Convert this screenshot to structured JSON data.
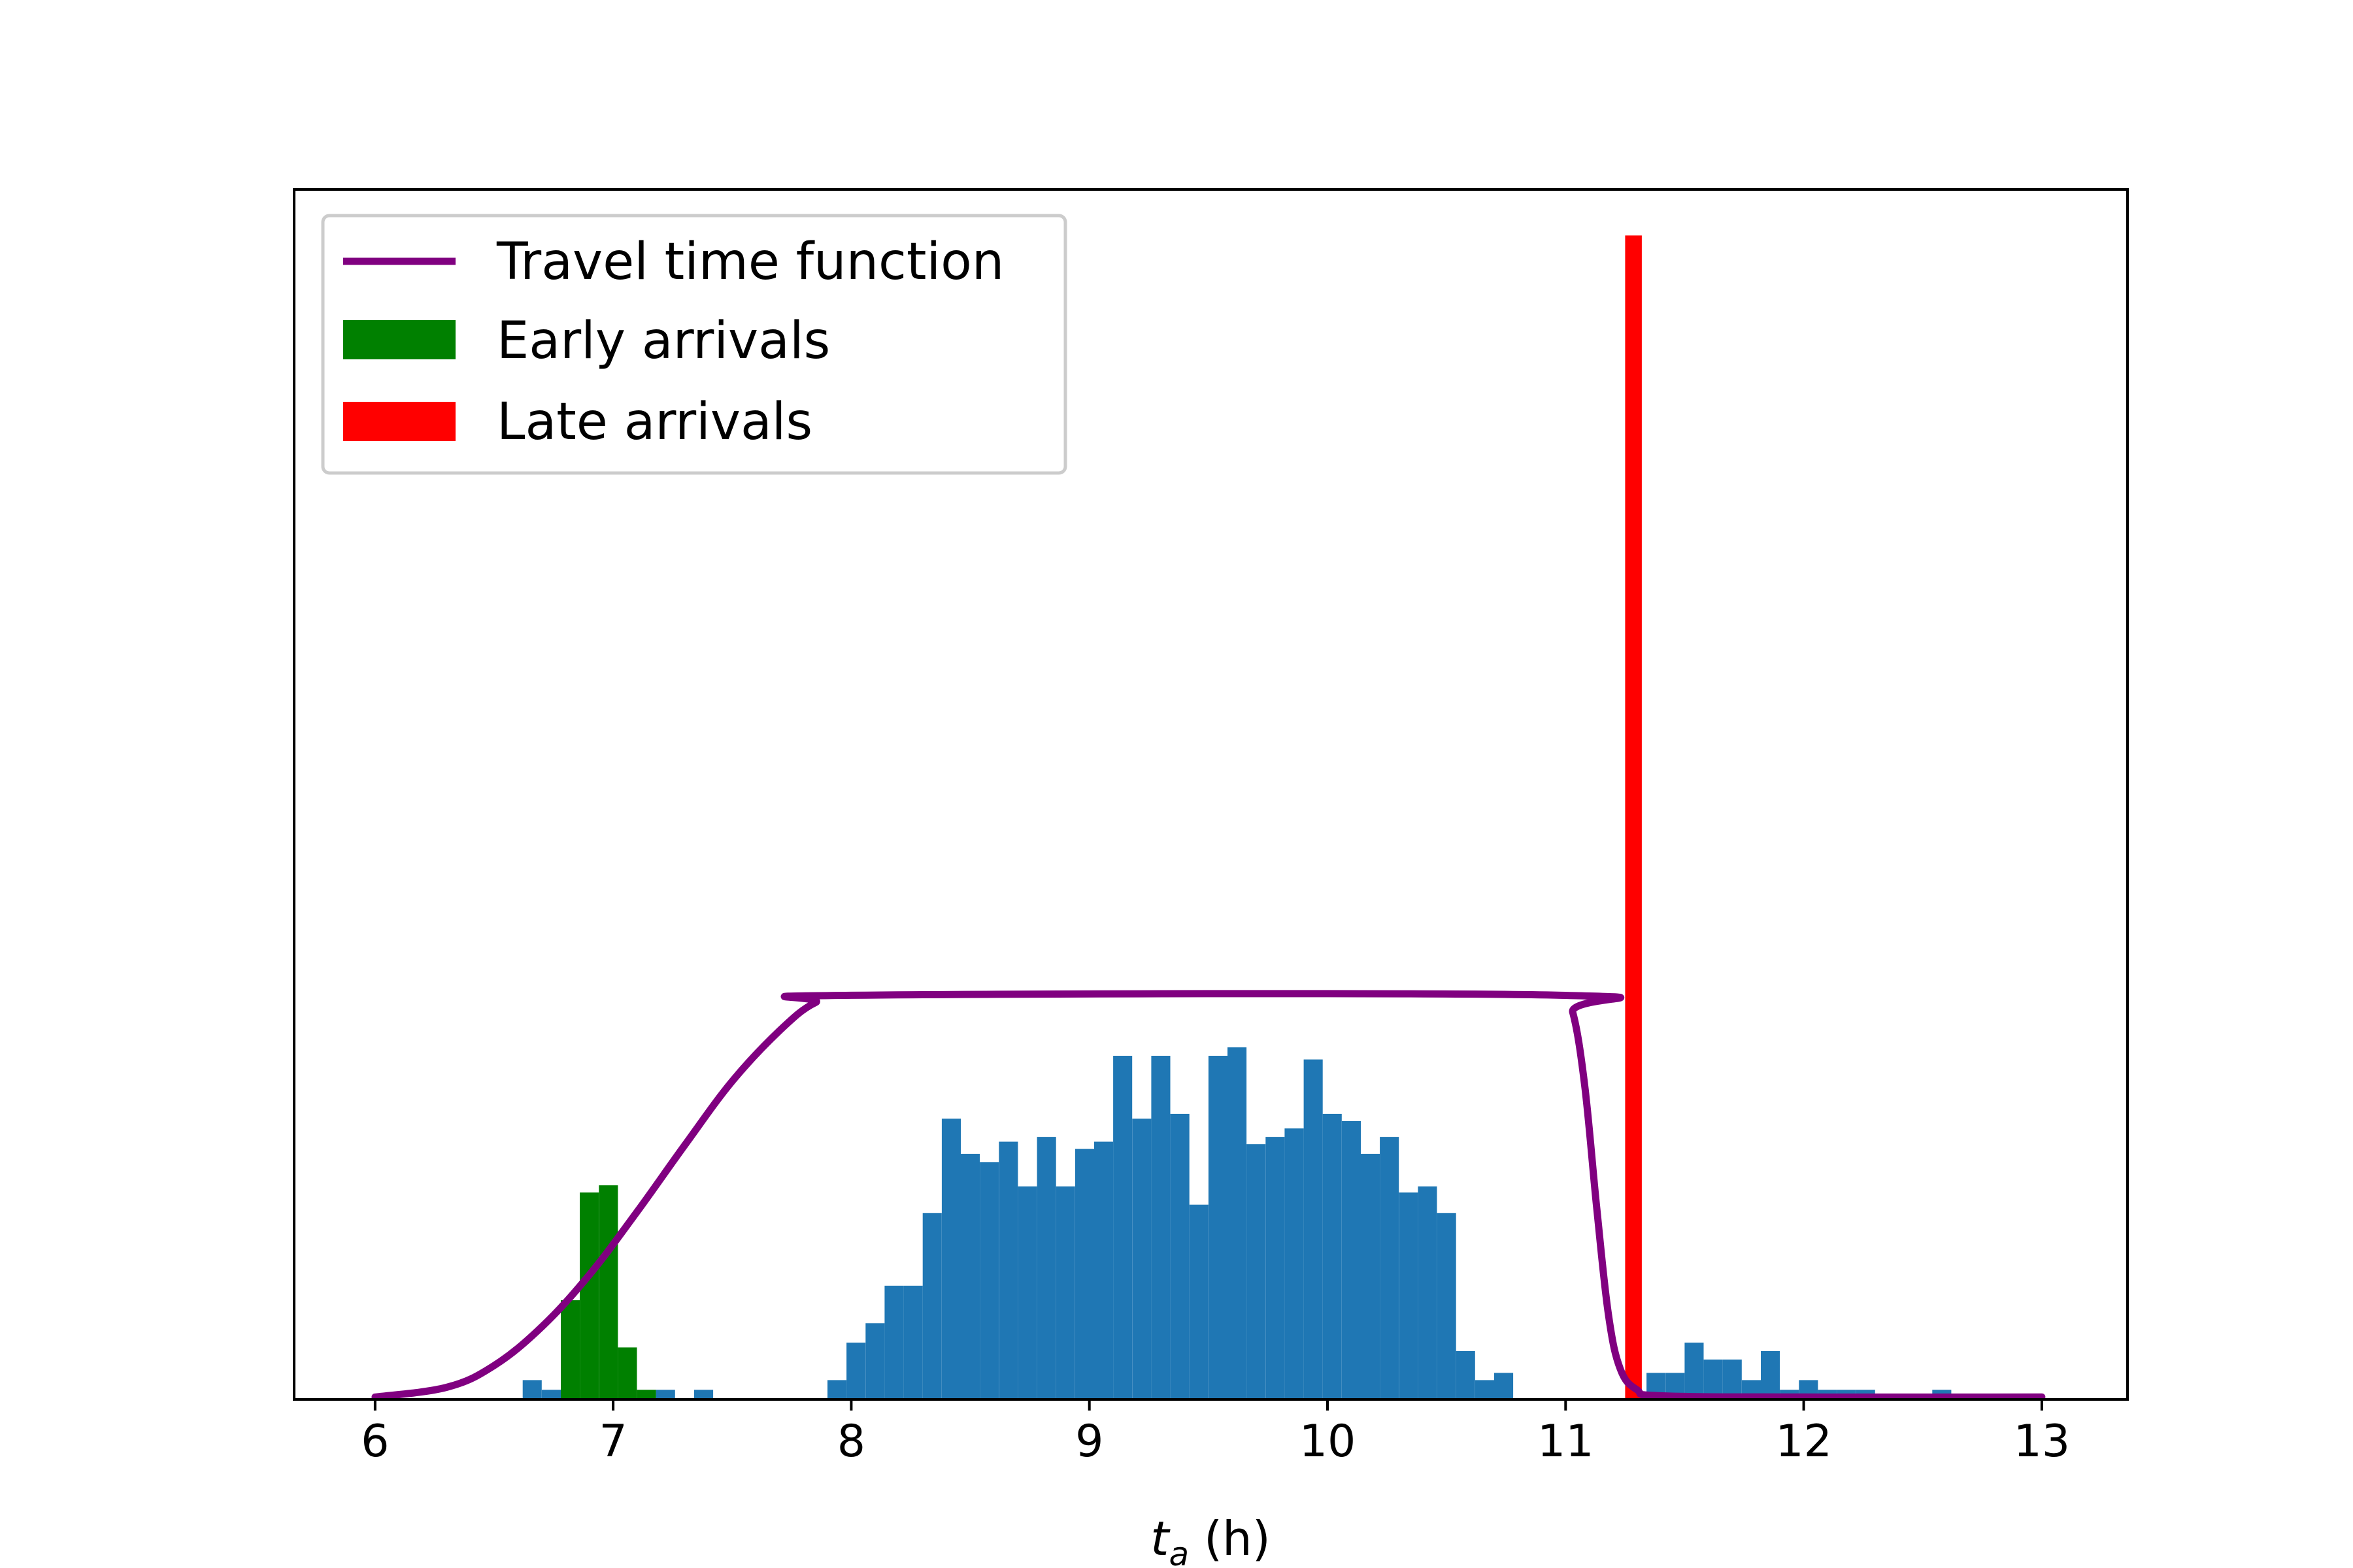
{
  "chart_data": {
    "type": "bar",
    "xlabel": {
      "main": "t",
      "sub": "a",
      "unit": " (h)"
    },
    "ylabel": "",
    "xlim": [
      5.66,
      13.36
    ],
    "ylim": [
      0,
      100
    ],
    "yticks_shown": false,
    "xticks": [
      "6",
      "7",
      "8",
      "9",
      "10",
      "11",
      "12",
      "13"
    ],
    "xtick_values": [
      6,
      7,
      8,
      9,
      10,
      11,
      12,
      13
    ],
    "legend_position": "upper-left",
    "grid": false,
    "colors": {
      "travel": "#800080",
      "early": "#008000",
      "late": "#ff0000",
      "histogram": "#1f77b4"
    },
    "series": [
      {
        "name": "Travel time function",
        "kind": "line",
        "points": [
          [
            6.0,
            0.2
          ],
          [
            6.3,
            1.0
          ],
          [
            6.5,
            2.8
          ],
          [
            6.7,
            6.0
          ],
          [
            6.9,
            10.3
          ],
          [
            7.1,
            15.5
          ],
          [
            7.3,
            21.0
          ],
          [
            7.5,
            26.3
          ],
          [
            7.7,
            30.5
          ],
          [
            7.85,
            32.8
          ],
          [
            8.0,
            33.4
          ],
          [
            10.98,
            33.4
          ],
          [
            11.03,
            32.0
          ],
          [
            11.08,
            26.0
          ],
          [
            11.13,
            16.0
          ],
          [
            11.18,
            7.0
          ],
          [
            11.23,
            2.5
          ],
          [
            11.3,
            0.8
          ],
          [
            11.4,
            0.3
          ],
          [
            12.0,
            0.2
          ],
          [
            13.0,
            0.2
          ]
        ]
      },
      {
        "name": "Early arrivals",
        "kind": "bar",
        "bin_width": 0.08,
        "bins": [
          {
            "start": 6.78,
            "value": 8.2
          },
          {
            "start": 6.86,
            "value": 17.1
          },
          {
            "start": 6.94,
            "value": 17.7
          },
          {
            "start": 7.02,
            "value": 4.3
          },
          {
            "start": 7.1,
            "value": 0.8
          }
        ]
      },
      {
        "name": "Late arrivals",
        "kind": "bar",
        "bin_width": 0.07,
        "bins": [
          {
            "start": 11.25,
            "value": 96.2
          }
        ]
      },
      {
        "name": "",
        "kind": "bar",
        "bin_width": 0.08,
        "bins": [
          {
            "start": 6.62,
            "value": 1.6
          },
          {
            "start": 6.7,
            "value": 0.8
          },
          {
            "start": 7.18,
            "value": 0.8
          },
          {
            "start": 7.34,
            "value": 0.8
          },
          {
            "start": 7.9,
            "value": 1.6
          },
          {
            "start": 7.98,
            "value": 4.7
          },
          {
            "start": 8.06,
            "value": 6.3
          },
          {
            "start": 8.14,
            "value": 9.4
          },
          {
            "start": 8.22,
            "value": 9.4
          },
          {
            "start": 8.3,
            "value": 15.4
          },
          {
            "start": 8.38,
            "value": 23.2
          },
          {
            "start": 8.46,
            "value": 20.3
          },
          {
            "start": 8.54,
            "value": 19.6
          },
          {
            "start": 8.62,
            "value": 21.3
          },
          {
            "start": 8.7,
            "value": 17.6
          },
          {
            "start": 8.78,
            "value": 21.7
          },
          {
            "start": 8.86,
            "value": 17.6
          },
          {
            "start": 8.94,
            "value": 20.7
          },
          {
            "start": 9.02,
            "value": 21.3
          },
          {
            "start": 9.1,
            "value": 28.4
          },
          {
            "start": 9.18,
            "value": 23.2
          },
          {
            "start": 9.26,
            "value": 28.4
          },
          {
            "start": 9.34,
            "value": 23.6
          },
          {
            "start": 9.42,
            "value": 16.1
          },
          {
            "start": 9.5,
            "value": 28.4
          },
          {
            "start": 9.58,
            "value": 29.1
          },
          {
            "start": 9.66,
            "value": 21.1
          },
          {
            "start": 9.74,
            "value": 21.7
          },
          {
            "start": 9.82,
            "value": 22.4
          },
          {
            "start": 9.9,
            "value": 28.1
          },
          {
            "start": 9.98,
            "value": 23.6
          },
          {
            "start": 10.06,
            "value": 23.0
          },
          {
            "start": 10.14,
            "value": 20.3
          },
          {
            "start": 10.22,
            "value": 21.7
          },
          {
            "start": 10.3,
            "value": 17.1
          },
          {
            "start": 10.38,
            "value": 17.6
          },
          {
            "start": 10.46,
            "value": 15.4
          },
          {
            "start": 10.54,
            "value": 4.0
          },
          {
            "start": 10.62,
            "value": 1.6
          },
          {
            "start": 10.7,
            "value": 2.2
          },
          {
            "start": 11.34,
            "value": 2.2
          },
          {
            "start": 11.42,
            "value": 2.2
          },
          {
            "start": 11.5,
            "value": 4.7
          },
          {
            "start": 11.58,
            "value": 3.3
          },
          {
            "start": 11.66,
            "value": 3.3
          },
          {
            "start": 11.74,
            "value": 1.6
          },
          {
            "start": 11.82,
            "value": 4.0
          },
          {
            "start": 11.9,
            "value": 0.8
          },
          {
            "start": 11.98,
            "value": 1.6
          },
          {
            "start": 12.06,
            "value": 0.8
          },
          {
            "start": 12.14,
            "value": 0.8
          },
          {
            "start": 12.22,
            "value": 0.8
          },
          {
            "start": 12.3,
            "value": 0.4
          },
          {
            "start": 12.46,
            "value": 0.4
          },
          {
            "start": 12.54,
            "value": 0.8
          },
          {
            "start": 12.62,
            "value": 0.4
          },
          {
            "start": 12.86,
            "value": 0.4
          }
        ]
      }
    ]
  }
}
